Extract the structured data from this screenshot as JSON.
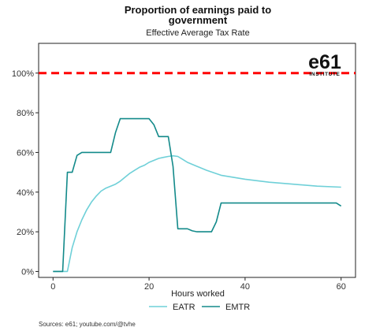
{
  "chart_data": {
    "type": "line",
    "title_line1": "Proportion of earnings paid to",
    "title_line2": "government",
    "subtitle": "Effective Average Tax Rate",
    "xlabel": "Hours worked",
    "ylabel": "",
    "xlim": [
      -3,
      63
    ],
    "ylim": [
      -3,
      115
    ],
    "x_ticks": [
      0,
      20,
      40,
      60
    ],
    "y_ticks": [
      0,
      20,
      40,
      60,
      80,
      100
    ],
    "y_tick_labels": [
      "0%",
      "20%",
      "40%",
      "60%",
      "80%",
      "100%"
    ],
    "reference_line": {
      "y": 100,
      "color": "#ff0000",
      "style": "dashed"
    },
    "grid": false,
    "legend_position": "bottom",
    "series": [
      {
        "name": "EATR",
        "color": "#6fd0d8",
        "x": [
          0,
          1,
          2,
          3,
          4,
          5,
          6,
          7,
          8,
          9,
          10,
          11,
          12,
          13,
          14,
          15,
          16,
          17,
          18,
          19,
          20,
          21,
          22,
          23,
          24,
          25,
          26,
          27,
          28,
          30,
          32,
          35,
          40,
          45,
          50,
          55,
          60
        ],
        "y": [
          0,
          0,
          0,
          0,
          12,
          20,
          26,
          31,
          35,
          38,
          40.5,
          42,
          43,
          44,
          45.5,
          47.5,
          49.5,
          51,
          52.5,
          53.5,
          55,
          56,
          57,
          57.5,
          58,
          58.3,
          58,
          56.5,
          55,
          53,
          51,
          48.5,
          46.5,
          45,
          44,
          43,
          42.5
        ]
      },
      {
        "name": "EMTR",
        "color": "#138a8a",
        "x": [
          0,
          2,
          3,
          4,
          5,
          6,
          7,
          8,
          9,
          10,
          11,
          12,
          13,
          14,
          15,
          16,
          17,
          18,
          19,
          20,
          21,
          22,
          23,
          24,
          25,
          26,
          27,
          28,
          29,
          30,
          31,
          32,
          33,
          34,
          35,
          40,
          45,
          50,
          55,
          59,
          60
        ],
        "y": [
          0,
          0,
          50,
          50,
          58.5,
          60,
          60,
          60,
          60,
          60,
          60,
          60,
          70,
          77,
          77,
          77,
          77,
          77,
          77,
          77,
          74,
          68,
          68,
          68,
          53,
          21.5,
          21.5,
          21.5,
          20.5,
          20,
          20,
          20,
          20,
          25,
          34.5,
          34.5,
          34.5,
          34.5,
          34.5,
          34.5,
          33
        ]
      }
    ],
    "source": "Sources: e61; youtube.com/@tvhe",
    "logo_text": "e61",
    "logo_subtext": "INSTITUTE"
  }
}
